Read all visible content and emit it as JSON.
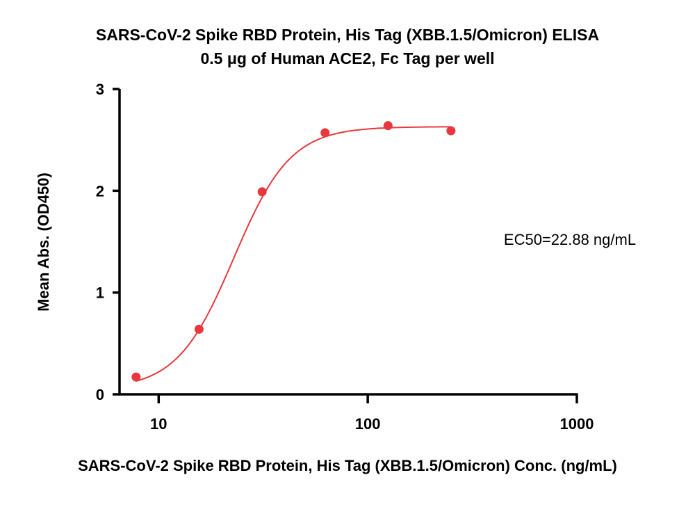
{
  "chart_data": {
    "type": "scatter",
    "title": "SARS-CoV-2 Spike RBD Protein, His Tag (XBB.1.5/Omicron) ELISA",
    "subtitle": "0.5 μg of Human ACE2, Fc Tag per well",
    "xlabel": "SARS-CoV-2 Spike RBD Protein, His Tag (XBB.1.5/Omicron) Conc. (ng/mL)",
    "ylabel": "Mean Abs. (OD450)",
    "xscale": "log",
    "xlim": [
      6.5,
      1000
    ],
    "ylim": [
      0,
      3
    ],
    "xticks": [
      10,
      100,
      1000
    ],
    "xtick_labels": [
      "10",
      "100",
      "1000"
    ],
    "yticks": [
      0,
      1,
      2,
      3
    ],
    "ytick_labels": [
      "0",
      "1",
      "2",
      "3"
    ],
    "grid": false,
    "legend": "none",
    "series": [
      {
        "color": "#e8383d",
        "x": [
          7.8,
          15.6,
          31.25,
          62.5,
          125,
          250
        ],
        "y": [
          0.17,
          0.64,
          1.99,
          2.57,
          2.64,
          2.59
        ],
        "fit": {
          "model": "4PL",
          "bottom": 0.05,
          "top": 2.63,
          "ec50": 22.88,
          "hill": 3.2
        }
      }
    ],
    "annotations": [
      "EC50=22.88 ng/mL"
    ]
  }
}
